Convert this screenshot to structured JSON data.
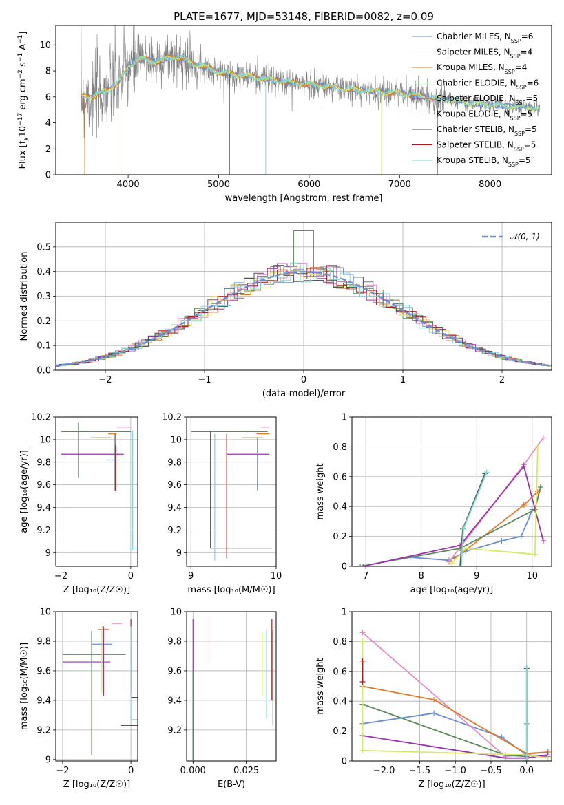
{
  "figure": {
    "title": "PLATE=1677, MJD=53148, FIBERID=0082, z=0.09",
    "colors": {
      "c1": "#6a8fd6",
      "c2": "#e78ac3",
      "c3": "#e07b2a",
      "c4": "#5a8a5a",
      "c5": "#9b30b0",
      "c6": "#d8e860",
      "c7": "#555555",
      "c8": "#b01c1c",
      "c9": "#7ad8d8",
      "data": "#808080"
    }
  },
  "chart_data": [
    {
      "id": "spectrum",
      "type": "line",
      "title": "PLATE=1677, MJD=53148, FIBERID=0082, z=0.09",
      "xlabel": "wavelength [Angstrom, rest frame]",
      "ylabel_parts": [
        "Flux [f",
        "λ",
        "10",
        "−17",
        " erg cm",
        "−2",
        " s",
        "−1",
        " A",
        "−1",
        "]"
      ],
      "xlim": [
        3200,
        8680
      ],
      "ylim": [
        0,
        11.5
      ],
      "xticks": [
        4000,
        5000,
        6000,
        7000,
        8000
      ],
      "yticks": [
        0,
        2,
        4,
        6,
        8,
        10
      ],
      "legend_loc": "upper right",
      "legend": [
        {
          "text": "Chabrier MILES, N",
          "sub": "SSP",
          "tail": "=6",
          "color": "c1"
        },
        {
          "text": "Salpeter MILES, N",
          "sub": "SSP",
          "tail": "=4",
          "color": "c2"
        },
        {
          "text": "Kroupa MILES, N",
          "sub": "SSP",
          "tail": "=4",
          "color": "c3"
        },
        {
          "text": "Chabrier ELODIE, N",
          "sub": "SSP",
          "tail": "=6",
          "color": "c4"
        },
        {
          "text": "Salpeter ELODIE, N",
          "sub": "SSP",
          "tail": "=5",
          "color": "c5"
        },
        {
          "text": "Kroupa ELODIE, N",
          "sub": "SSP",
          "tail": "=5",
          "color": "c6"
        },
        {
          "text": "Chabrier STELIB, N",
          "sub": "SSP",
          "tail": "=5",
          "color": "c7"
        },
        {
          "text": "Salpeter STELIB, N",
          "sub": "SSP",
          "tail": "=5",
          "color": "c8"
        },
        {
          "text": "Kroupa STELIB, N",
          "sub": "SSP",
          "tail": "=5",
          "color": "c9"
        }
      ],
      "continuum": [
        [
          3480,
          6.1
        ],
        [
          3600,
          6.0
        ],
        [
          3700,
          6.3
        ],
        [
          3800,
          6.6
        ],
        [
          3900,
          7.2
        ],
        [
          4000,
          8.3
        ],
        [
          4100,
          8.9
        ],
        [
          4200,
          8.9
        ],
        [
          4300,
          8.7
        ],
        [
          4400,
          8.9
        ],
        [
          4500,
          9.1
        ],
        [
          4600,
          9.0
        ],
        [
          4700,
          8.6
        ],
        [
          4800,
          8.4
        ],
        [
          4900,
          8.2
        ],
        [
          5000,
          7.9
        ],
        [
          5200,
          7.7
        ],
        [
          5400,
          7.5
        ],
        [
          5600,
          7.3
        ],
        [
          5800,
          7.1
        ],
        [
          6000,
          7.0
        ],
        [
          6200,
          6.8
        ],
        [
          6400,
          6.6
        ],
        [
          6600,
          6.5
        ],
        [
          6800,
          6.4
        ],
        [
          7000,
          6.3
        ],
        [
          7200,
          6.1
        ],
        [
          7400,
          5.9
        ],
        [
          7600,
          5.7
        ],
        [
          7800,
          5.5
        ],
        [
          8000,
          5.4
        ],
        [
          8200,
          5.3
        ],
        [
          8400,
          5.2
        ],
        [
          8550,
          5.1
        ]
      ]
    },
    {
      "id": "residuals",
      "type": "step",
      "xlabel": "(data-model)/error",
      "ylabel": "Normed distribution",
      "xlim": [
        -2.5,
        2.5
      ],
      "ylim": [
        0,
        0.6
      ],
      "xticks": [
        -2,
        -1,
        0,
        1,
        2
      ],
      "xtick_labels": [
        "−2",
        "−1",
        "0",
        "1",
        "2"
      ],
      "yticks": [
        0.0,
        0.1,
        0.2,
        0.3,
        0.4,
        0.5
      ],
      "ytick_labels": [
        "0.0",
        "0.1",
        "0.2",
        "0.3",
        "0.4",
        "0.5"
      ],
      "legend_loc": "upper right",
      "legend_label": "𝒩(0, 1)",
      "gaussian": {
        "mean": 0,
        "sigma": 1,
        "color": "c1"
      }
    },
    {
      "id": "age_vs_Z",
      "type": "errorbar",
      "xlabel": "Z [log₁₀(Z/Z☉)]",
      "ylabel": "age  [log₁₀(age/yr)]",
      "xlim": [
        -2.15,
        0.2
      ],
      "ylim": [
        8.88,
        10.2
      ],
      "xticks": [
        -2,
        0
      ],
      "xtick_labels": [
        "−2",
        "0"
      ],
      "yticks": [
        9.0,
        9.2,
        9.4,
        9.6,
        9.8,
        10.0,
        10.2
      ],
      "points": [
        {
          "color": "c4",
          "x": -2.0,
          "xerr": [
            0,
            2.0
          ],
          "y": 10.07
        },
        {
          "color": "c4",
          "x": -1.5,
          "y": 9.93,
          "yerr": [
            0.27,
            0.22
          ]
        },
        {
          "color": "c5",
          "x": -2.0,
          "xerr": [
            0,
            1.8
          ],
          "y": 9.87
        },
        {
          "color": "c6",
          "x": -0.75,
          "xerr": [
            0.4,
            0.2
          ],
          "y": 10.02
        },
        {
          "color": "c2",
          "x": -0.3,
          "xerr": [
            0.1,
            0.3
          ],
          "y": 10.11
        },
        {
          "color": "c3",
          "x": -0.45,
          "xerr": [
            0.2,
            0.05
          ],
          "y": 10.05
        },
        {
          "color": "c1",
          "x": -0.4,
          "xerr": [
            0.3,
            0.05
          ],
          "y": 9.82
        },
        {
          "color": "c7",
          "x": -0.45,
          "y": 9.9,
          "yerr": [
            0.35,
            0.15
          ]
        },
        {
          "color": "c8",
          "x": -0.43,
          "y": 9.85,
          "yerr": [
            0.3,
            0.1
          ]
        },
        {
          "color": "c9",
          "x": 0.05,
          "xerr": [
            0.1,
            0.5
          ],
          "y": 9.04
        },
        {
          "color": "c9",
          "x": 0.05,
          "y": 9.6,
          "yerr": [
            0.58,
            0.48
          ]
        }
      ]
    },
    {
      "id": "age_vs_mass",
      "type": "errorbar",
      "xlabel": "mass [log₁₀(M/M☉)]",
      "ylabel": "",
      "xlim": [
        8.95,
        10.0
      ],
      "ylim": [
        8.88,
        10.2
      ],
      "xticks": [
        9,
        10
      ],
      "yticks": [
        9.0,
        9.2,
        9.4,
        9.6,
        9.8,
        10.0,
        10.2
      ],
      "points": [
        {
          "color": "c4",
          "x": 9.0,
          "xerr": [
            0,
            0.9
          ],
          "y": 10.07
        },
        {
          "color": "c7",
          "x": 9.23,
          "y": 9.53,
          "yerr": [
            0.49,
            0.54
          ]
        },
        {
          "color": "c7",
          "x": 9.23,
          "xerr": [
            0,
            0.72
          ],
          "y": 9.04
        },
        {
          "color": "c9",
          "x": 9.28,
          "y": 9.5,
          "yerr": [
            0.57,
            0.55
          ]
        },
        {
          "color": "c8",
          "x": 9.42,
          "y": 9.5,
          "yerr": [
            0.55,
            0.55
          ]
        },
        {
          "color": "c5",
          "x": 9.42,
          "xerr": [
            0,
            0.5
          ],
          "y": 9.87
        },
        {
          "color": "c6",
          "x": 9.6,
          "xerr": [
            0,
            0.25
          ],
          "y": 10.02
        },
        {
          "color": "c2",
          "x": 9.92,
          "xerr": [
            0.1,
            0.0
          ],
          "y": 10.11
        },
        {
          "color": "c3",
          "x": 9.87,
          "xerr": [
            0.1,
            0.05
          ],
          "y": 10.05
        },
        {
          "color": "c1",
          "x": 9.78,
          "y": 9.82,
          "yerr": [
            0.27,
            0.2
          ]
        }
      ]
    },
    {
      "id": "weight_vs_age",
      "type": "line",
      "xlabel": "age  [log₁₀(age/yr)]",
      "ylabel": "mass weight",
      "xlim": [
        6.75,
        10.35
      ],
      "ylim": [
        0,
        1.0
      ],
      "xticks": [
        7,
        8,
        9,
        10
      ],
      "yticks": [
        0.0,
        0.2,
        0.4,
        0.6,
        0.8,
        1.0
      ],
      "series": [
        {
          "color": "c1",
          "points": [
            [
              7.8,
              0.06
            ],
            [
              8.5,
              0.04
            ],
            [
              8.8,
              0.1
            ],
            [
              9.45,
              0.17
            ],
            [
              9.8,
              0.2
            ],
            [
              9.95,
              0.33
            ],
            [
              10.0,
              0.38
            ]
          ]
        },
        {
          "color": "c2",
          "points": [
            [
              8.5,
              0.03
            ],
            [
              9.85,
              0.68
            ],
            [
              10.2,
              0.86
            ]
          ]
        },
        {
          "color": "c3",
          "points": [
            [
              8.6,
              0.05
            ],
            [
              9.85,
              0.41
            ],
            [
              10.1,
              0.5
            ]
          ]
        },
        {
          "color": "c4",
          "points": [
            [
              6.9,
              0.0
            ],
            [
              8.7,
              0.12
            ],
            [
              10.05,
              0.38
            ],
            [
              10.15,
              0.53
            ]
          ]
        },
        {
          "color": "c5",
          "points": [
            [
              6.95,
              0.0
            ],
            [
              8.7,
              0.14
            ],
            [
              9.85,
              0.67
            ],
            [
              10.2,
              0.17
            ]
          ]
        },
        {
          "color": "c6",
          "points": [
            [
              8.55,
              0.02
            ],
            [
              8.8,
              0.12
            ],
            [
              10.05,
              0.08
            ],
            [
              10.1,
              0.8
            ]
          ]
        },
        {
          "color": "c7",
          "points": [
            [
              8.7,
              0.0
            ],
            [
              8.75,
              0.25
            ],
            [
              9.15,
              0.62
            ]
          ]
        },
        {
          "color": "c9",
          "points": [
            [
              8.72,
              0.0
            ],
            [
              8.76,
              0.25
            ],
            [
              9.18,
              0.63
            ]
          ]
        }
      ]
    },
    {
      "id": "mass_vs_Z",
      "type": "errorbar",
      "xlabel": "Z [log₁₀(Z/Z☉)]",
      "ylabel": "mass [log₁₀(M/M☉)]",
      "xlim": [
        -2.2,
        0.2
      ],
      "ylim": [
        8.99,
        10.0
      ],
      "xticks": [
        -2,
        0
      ],
      "xtick_labels": [
        "−2",
        "0"
      ],
      "yticks": [
        9.0,
        9.2,
        9.4,
        9.6,
        9.8,
        10.0
      ],
      "points": [
        {
          "color": "c4",
          "x": -2.0,
          "xerr": [
            0,
            1.85
          ],
          "y": 9.71
        },
        {
          "color": "c4",
          "x": -1.15,
          "y": 9.45,
          "yerr": [
            0.42,
            0.42
          ]
        },
        {
          "color": "c1",
          "x": -1.15,
          "xerr": [
            0,
            0.6
          ],
          "y": 9.78
        },
        {
          "color": "c5",
          "x": -2.0,
          "xerr": [
            0,
            1.4
          ],
          "y": 9.66
        },
        {
          "color": "c3",
          "x": -0.85,
          "xerr": [
            0.1,
            0.2
          ],
          "y": 9.88
        },
        {
          "color": "c2",
          "x": -0.45,
          "xerr": [
            0.1,
            0.2
          ],
          "y": 9.92
        },
        {
          "color": "c6",
          "x": -0.85,
          "y": 9.7,
          "yerr": [
            0.25,
            0.2
          ]
        },
        {
          "color": "c5",
          "x": -0.8,
          "y": 9.65,
          "yerr": [
            0.22,
            0.25
          ]
        },
        {
          "color": "c8",
          "x": 0.0,
          "xerr": [
            0,
            0.3
          ],
          "y": 9.42
        },
        {
          "color": "c8",
          "x": 0.0,
          "y": 9.8,
          "yerr": [
            0.35,
            0.15
          ]
        },
        {
          "color": "c9",
          "x": 0.0,
          "y": 9.6,
          "yerr": [
            0.33,
            0.3
          ]
        },
        {
          "color": "c9",
          "x": 0.0,
          "xerr": [
            0,
            0.3
          ],
          "y": 9.27
        },
        {
          "color": "c7",
          "x": -0.3,
          "xerr": [
            0,
            0.5
          ],
          "y": 9.23
        }
      ]
    },
    {
      "id": "mass_vs_EBV",
      "type": "errorbar",
      "xlabel": "E(B-V)",
      "ylabel": "",
      "xlim": [
        -0.003,
        0.039
      ],
      "ylim": [
        8.99,
        10.0
      ],
      "xticks": [
        0.0,
        0.025
      ],
      "xtick_labels": [
        "0.000",
        "0.025"
      ],
      "yticks": [
        9.2,
        9.4,
        9.6,
        9.8,
        10.0
      ],
      "points": [
        {
          "color": "c5",
          "x": 0.0,
          "y": 9.55,
          "yerr": [
            0.55,
            0.4
          ]
        },
        {
          "color": "c4",
          "x": 0.0,
          "y": 9.4,
          "yerr": [
            0.4,
            0.2
          ]
        },
        {
          "color": "c2",
          "x": 0.0075,
          "y": 9.81,
          "yerr": [
            0.16,
            0.16
          ]
        },
        {
          "color": "c6",
          "x": 0.0325,
          "y": 9.66,
          "yerr": [
            0.23,
            0.2
          ]
        },
        {
          "color": "c9",
          "x": 0.0345,
          "y": 9.58,
          "yerr": [
            0.3,
            0.3
          ]
        },
        {
          "color": "c7",
          "x": 0.0375,
          "y": 9.58,
          "yerr": [
            0.35,
            0.3
          ]
        },
        {
          "color": "c8",
          "x": 0.037,
          "y": 9.65,
          "yerr": [
            0.25,
            0.3
          ]
        }
      ]
    },
    {
      "id": "weight_vs_Z",
      "type": "line",
      "xlabel": "Z [log₁₀(Z/Z☉)]",
      "ylabel": "mass weight",
      "xlim": [
        -2.45,
        0.35
      ],
      "ylim": [
        0,
        1.0
      ],
      "xticks": [
        -2.0,
        -1.5,
        -1.0,
        -0.5,
        0.0
      ],
      "xtick_labels": [
        "−2.0",
        "−1.5",
        "−1.0",
        "−0.5",
        "0.0"
      ],
      "yticks": [
        0.0,
        0.2,
        0.4,
        0.6,
        0.8,
        1.0
      ],
      "series": [
        {
          "color": "c1",
          "points": [
            [
              -2.3,
              0.25
            ],
            [
              -1.3,
              0.32
            ],
            [
              -0.35,
              0.16
            ],
            [
              0.0,
              0.04
            ],
            [
              0.3,
              0.03
            ]
          ]
        },
        {
          "color": "c2",
          "points": [
            [
              -2.3,
              0.86
            ],
            [
              -0.3,
              0.03
            ],
            [
              0.3,
              0.06
            ]
          ]
        },
        {
          "color": "c3",
          "points": [
            [
              -2.3,
              0.5
            ],
            [
              -1.3,
              0.41
            ],
            [
              0.0,
              0.05
            ],
            [
              0.3,
              0.06
            ]
          ]
        },
        {
          "color": "c4",
          "points": [
            [
              -2.3,
              0.38
            ],
            [
              -0.3,
              0.04
            ],
            [
              0.0,
              0.03
            ]
          ]
        },
        {
          "color": "c5",
          "points": [
            [
              -2.3,
              0.17
            ],
            [
              -0.3,
              0.02
            ],
            [
              0.0,
              0.02
            ],
            [
              0.3,
              0.04
            ]
          ]
        },
        {
          "color": "c6",
          "points": [
            [
              -2.3,
              0.8
            ],
            [
              -2.3,
              0.07
            ],
            [
              0.0,
              0.04
            ],
            [
              0.3,
              0.02
            ]
          ]
        },
        {
          "color": "c7",
          "points": [
            [
              0.0,
              0.62
            ],
            [
              0.0,
              0.25
            ],
            [
              0.0,
              0.0
            ]
          ]
        },
        {
          "color": "c9",
          "points": [
            [
              0.0,
              0.63
            ],
            [
              0.0,
              0.25
            ],
            [
              0.0,
              0.0
            ]
          ]
        },
        {
          "color": "c8",
          "points": [
            [
              -2.3,
              0.67
            ],
            [
              -2.3,
              0.53
            ]
          ]
        }
      ]
    }
  ]
}
